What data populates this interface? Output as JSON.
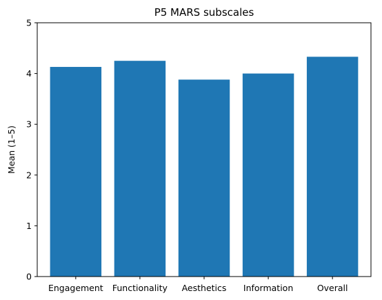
{
  "chart_data": {
    "type": "bar",
    "title": "P5 MARS subscales",
    "xlabel": "",
    "ylabel": "Mean (1–5)",
    "categories": [
      "Engagement",
      "Functionality",
      "Aesthetics",
      "Information",
      "Overall"
    ],
    "values": [
      4.13,
      4.25,
      3.88,
      4.0,
      4.33
    ],
    "ylim": [
      0,
      5
    ],
    "yticks": [
      0,
      1,
      2,
      3,
      4,
      5
    ],
    "bar_color": "#1f77b4",
    "grid": false,
    "legend": "none"
  }
}
